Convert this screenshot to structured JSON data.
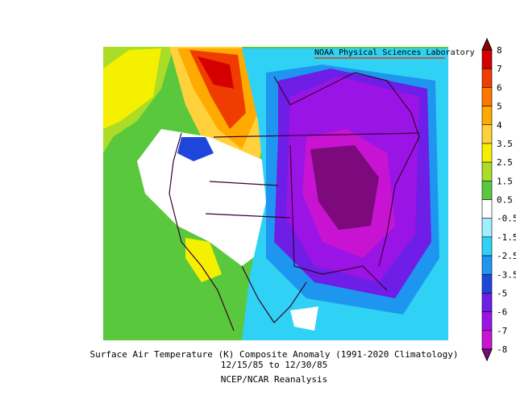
{
  "header": {
    "credit": "NOAA Physical Sciences Laboratory"
  },
  "caption": {
    "title": "Surface Air Temperature (K) Composite Anomaly (1991-2020 Climatology)",
    "dates": "12/15/85  to 12/30/85",
    "source": "NCEP/NCAR Reanalysis"
  },
  "colorbar": {
    "labels": [
      "8",
      "7",
      "6",
      "5",
      "4",
      "3.5",
      "2.5",
      "1.5",
      "0.5",
      "-0.5",
      "-1.5",
      "-2.5",
      "-3.5",
      "-5",
      "-6",
      "-7",
      "-8"
    ],
    "colors": [
      "#8c0000",
      "#d40000",
      "#f03c00",
      "#ff7800",
      "#ffaa00",
      "#ffd23c",
      "#f5f000",
      "#aadc28",
      "#5ac83c",
      "#ffffff",
      "#9ef0ff",
      "#2fd2f5",
      "#1e96f0",
      "#1e46dc",
      "#6e1ee6",
      "#9b14e6",
      "#c814d2",
      "#7d0a7d"
    ]
  }
}
